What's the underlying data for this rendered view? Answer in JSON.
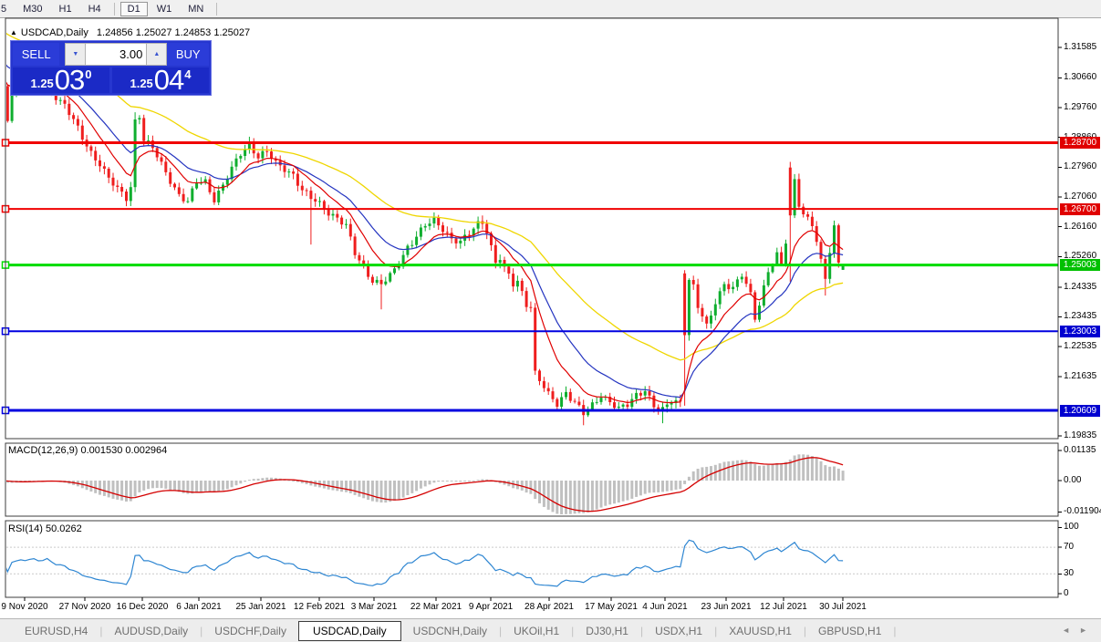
{
  "toolbar": {
    "timeframes": [
      "5",
      "M30",
      "H1",
      "H4",
      "D1",
      "W1",
      "MN"
    ],
    "selected": "D1"
  },
  "chart": {
    "title": {
      "symbol": "USDCAD,Daily",
      "ohlc": "1.24856 1.25027 1.24853 1.25027"
    },
    "trade_panel": {
      "sell_label": "SELL",
      "buy_label": "BUY",
      "volume": "3.00",
      "sell_price_prefix": "1.25",
      "sell_price_big": "03",
      "sell_price_sup": "0",
      "buy_price_prefix": "1.25",
      "buy_price_big": "04",
      "buy_price_sup": "4",
      "spin_down_icon": "▼",
      "spin_up_icon": "▲"
    }
  },
  "macd_panel": {
    "label": "MACD(12,26,9) 0.001530 0.002964",
    "axis_labels": [
      "0.01135",
      "0.00",
      "-0.011904"
    ],
    "axis_values": [
      0.01135,
      0,
      -0.011904
    ]
  },
  "rsi_panel": {
    "label": "RSI(14) 50.0262",
    "axis_labels": [
      "100",
      "70",
      "30",
      "0"
    ],
    "axis_values": [
      100,
      70,
      30,
      0
    ]
  },
  "tabs": {
    "items": [
      "EURUSD,H4",
      "AUDUSD,Daily",
      "USDCHF,Daily",
      "USDCAD,Daily",
      "USDCNH,Daily",
      "UKOil,H1",
      "DJ30,H1",
      "USDX,H1",
      "XAUUSD,H1",
      "GBPUSD,H1"
    ],
    "selected": "USDCAD,Daily",
    "scroll_left_icon": "◄",
    "scroll_right_icon": "►"
  },
  "chart_data": {
    "type": "candlestick",
    "symbol": "USDCAD",
    "timeframe": "Daily",
    "last_candle": {
      "open": 1.24856,
      "high": 1.25027,
      "low": 1.24853,
      "close": 1.25027
    },
    "y_axis": {
      "min": 1.19835,
      "max": 1.31585,
      "ticks": [
        "1.31585",
        "1.30660",
        "1.29760",
        "1.28860",
        "1.27960",
        "1.27060",
        "1.26160",
        "1.25260",
        "1.24335",
        "1.23435",
        "1.22535",
        "1.21635",
        "1.19835"
      ]
    },
    "x_axis_dates": [
      [
        "9 Nov 2020",
        27
      ],
      [
        "27 Nov 2020",
        93
      ],
      [
        "16 Dec 2020",
        156
      ],
      [
        "6 Jan 2021",
        218
      ],
      [
        "25 Jan 2021",
        286
      ],
      [
        "12 Feb 2021",
        350
      ],
      [
        "3 Mar 2021",
        410
      ],
      [
        "22 Mar 2021",
        478
      ],
      [
        "9 Apr 2021",
        538
      ],
      [
        "28 Apr 2021",
        602
      ],
      [
        "17 May 2021",
        670
      ],
      [
        "4 Jun 2021",
        729
      ],
      [
        "23 Jun 2021",
        796
      ],
      [
        "12 Jul 2021",
        859
      ],
      [
        "30 Jul 2021",
        924
      ]
    ],
    "levels": [
      {
        "price": 1.287,
        "text": "1.28700",
        "color": "#f00000",
        "tag_color": "#e00000",
        "width": 3
      },
      {
        "price": 1.267,
        "text": "1.26700",
        "color": "#f00000",
        "tag_color": "#e00000",
        "width": 2
      },
      {
        "price": 1.25003,
        "text": "1.25003",
        "color": "#00dc00",
        "tag_color": "#00c000",
        "width": 3
      },
      {
        "price": 1.23003,
        "text": "1.23003",
        "color": "#0000e0",
        "tag_color": "#0000d0",
        "width": 2
      },
      {
        "price": 1.20609,
        "text": "1.20609",
        "color": "#0000e0",
        "tag_color": "#0000d0",
        "width": 3
      }
    ],
    "overlays": [
      {
        "name": "ema-fast",
        "period": 10,
        "seed": 1.3075,
        "color": "#e00000"
      },
      {
        "name": "ema-mid",
        "period": 20,
        "seed": 1.3125,
        "color": "#2434c0"
      },
      {
        "name": "ema-slow",
        "period": 50,
        "seed": 1.3215,
        "color": "#efd600"
      }
    ],
    "indicators": [
      {
        "name": "MACD",
        "params": [
          12,
          26,
          9
        ],
        "main": 0.00153,
        "signal": 0.002964,
        "bar_color": "#c0c0c0",
        "signal_color": "#d40000"
      },
      {
        "name": "RSI",
        "params": [
          14
        ],
        "value": 50.0262,
        "line_color": "#2e86d2",
        "level_lines": [
          70,
          30
        ]
      }
    ],
    "count": 192,
    "close_anchors": [
      [
        0,
        1.304
      ],
      [
        1,
        1.2935
      ],
      [
        2,
        1.3025
      ],
      [
        4,
        1.3038
      ],
      [
        6,
        1.3046
      ],
      [
        8,
        1.303
      ],
      [
        10,
        1.3042
      ],
      [
        12,
        1.3012
      ],
      [
        14,
        1.2986
      ],
      [
        16,
        1.2936
      ],
      [
        18,
        1.2882
      ],
      [
        20,
        1.284
      ],
      [
        22,
        1.281
      ],
      [
        24,
        1.2762
      ],
      [
        26,
        1.2726
      ],
      [
        28,
        1.2702
      ],
      [
        29,
        1.2736
      ],
      [
        30,
        1.294
      ],
      [
        31,
        1.2946
      ],
      [
        32,
        1.288
      ],
      [
        34,
        1.2852
      ],
      [
        36,
        1.2802
      ],
      [
        38,
        1.2758
      ],
      [
        40,
        1.2714
      ],
      [
        42,
        1.269
      ],
      [
        44,
        1.2748
      ],
      [
        46,
        1.2752
      ],
      [
        48,
        1.2702
      ],
      [
        50,
        1.2742
      ],
      [
        52,
        1.2788
      ],
      [
        54,
        1.2836
      ],
      [
        56,
        1.2868
      ],
      [
        58,
        1.283
      ],
      [
        60,
        1.2842
      ],
      [
        62,
        1.2804
      ],
      [
        64,
        1.2792
      ],
      [
        66,
        1.2776
      ],
      [
        68,
        1.2726
      ],
      [
        70,
        1.27
      ],
      [
        72,
        1.2684
      ],
      [
        74,
        1.2662
      ],
      [
        76,
        1.2644
      ],
      [
        78,
        1.2616
      ],
      [
        80,
        1.2534
      ],
      [
        82,
        1.2494
      ],
      [
        84,
        1.2456
      ],
      [
        86,
        1.2442
      ],
      [
        88,
        1.2464
      ],
      [
        90,
        1.2504
      ],
      [
        92,
        1.2558
      ],
      [
        94,
        1.2588
      ],
      [
        96,
        1.2618
      ],
      [
        98,
        1.2632
      ],
      [
        100,
        1.2612
      ],
      [
        102,
        1.2582
      ],
      [
        104,
        1.2568
      ],
      [
        106,
        1.2592
      ],
      [
        108,
        1.2626
      ],
      [
        109,
        1.2634
      ],
      [
        110,
        1.2606
      ],
      [
        111,
        1.2556
      ],
      [
        112,
        1.2508
      ],
      [
        113,
        1.252
      ],
      [
        114,
        1.2484
      ],
      [
        115,
        1.2466
      ],
      [
        116,
        1.2442
      ],
      [
        117,
        1.2452
      ],
      [
        118,
        1.242
      ],
      [
        119,
        1.2386
      ],
      [
        120,
        1.2372
      ],
      [
        121,
        1.218
      ],
      [
        122,
        1.215
      ],
      [
        124,
        1.2106
      ],
      [
        126,
        1.2082
      ],
      [
        128,
        1.2118
      ],
      [
        130,
        1.2084
      ],
      [
        132,
        1.2048
      ],
      [
        134,
        1.2076
      ],
      [
        136,
        1.211
      ],
      [
        138,
        1.2088
      ],
      [
        140,
        1.2062
      ],
      [
        142,
        1.2076
      ],
      [
        144,
        1.211
      ],
      [
        146,
        1.2126
      ],
      [
        148,
        1.2072
      ],
      [
        150,
        1.2058
      ],
      [
        152,
        1.2092
      ],
      [
        154,
        1.2088
      ],
      [
        155,
        1.229
      ],
      [
        156,
        1.2455
      ],
      [
        157,
        1.2432
      ],
      [
        158,
        1.2372
      ],
      [
        160,
        1.2312
      ],
      [
        162,
        1.2392
      ],
      [
        164,
        1.2446
      ],
      [
        166,
        1.2426
      ],
      [
        168,
        1.2468
      ],
      [
        170,
        1.2412
      ],
      [
        171,
        1.2346
      ],
      [
        172,
        1.2386
      ],
      [
        174,
        1.2482
      ],
      [
        176,
        1.2526
      ],
      [
        177,
        1.2496
      ],
      [
        178,
        1.2566
      ],
      [
        179,
        1.265
      ],
      [
        180,
        1.276
      ],
      [
        181,
        1.269
      ],
      [
        182,
        1.2656
      ],
      [
        184,
        1.262
      ],
      [
        185,
        1.2568
      ],
      [
        186,
        1.2506
      ],
      [
        187,
        1.246
      ],
      [
        188,
        1.2546
      ],
      [
        189,
        1.2618
      ],
      [
        190,
        1.2508
      ],
      [
        191,
        1.25027
      ]
    ],
    "open_overrides": {
      "155": 1.2475,
      "179": 1.2795,
      "191": 1.24856
    },
    "wick_overrides": {
      "1": [
        1.3045,
        null
      ],
      "30": [
        1.2962,
        null
      ],
      "70": [
        null,
        1.2562
      ],
      "86": [
        null,
        1.2366
      ],
      "132": [
        null,
        1.2016
      ],
      "150": [
        null,
        1.2022
      ],
      "155": [
        1.2485,
        1.2075
      ],
      "179": [
        1.2812,
        1.245
      ],
      "187": [
        null,
        1.2408
      ],
      "191": [
        1.25027,
        1.24853
      ]
    },
    "noise": {
      "amp1": 0.00085,
      "freq1": 1.93,
      "ph1": 0.7,
      "amp2": 0.00055,
      "freq2": 0.71,
      "ph2": 2.1,
      "calm_indices": [
        0,
        1,
        29,
        30,
        31,
        120,
        121,
        154,
        155,
        156,
        178,
        179,
        180,
        190,
        191
      ]
    },
    "candle_colors": {
      "up": "#0fae2e",
      "down": "#ef1e1e"
    }
  }
}
